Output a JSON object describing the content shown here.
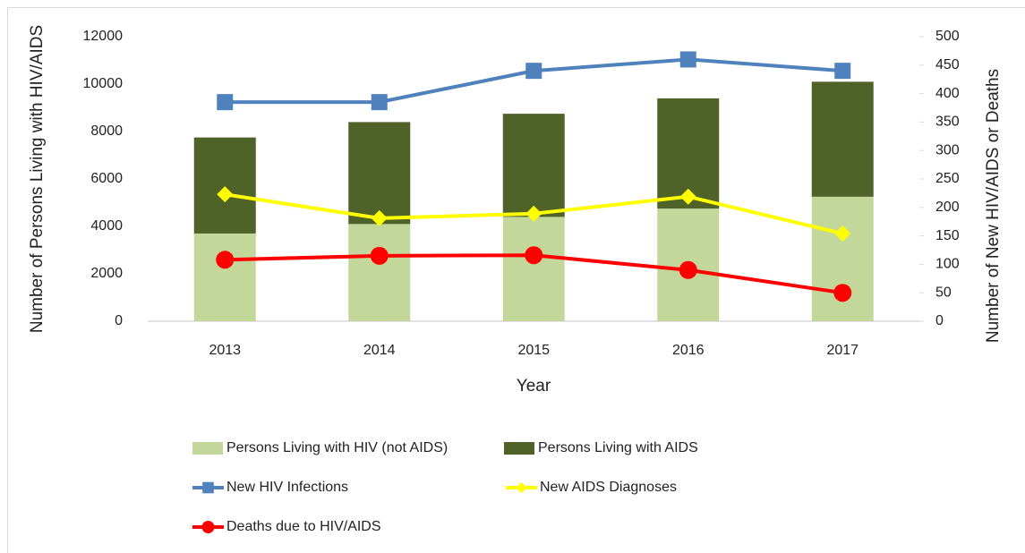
{
  "chart_data": {
    "type": "combo",
    "xlabel": "Year",
    "ylabel": "Number of Persons Living with HIV/AIDS",
    "y2label": "Number of New HIV/AIDS or Deaths",
    "categories": [
      "2013",
      "2014",
      "2015",
      "2016",
      "2017"
    ],
    "ylim": [
      0,
      12000
    ],
    "yticks": [
      0,
      2000,
      4000,
      6000,
      8000,
      10000,
      12000
    ],
    "y2lim": [
      0,
      500
    ],
    "y2ticks": [
      0,
      50,
      100,
      150,
      200,
      250,
      300,
      350,
      400,
      450,
      500
    ],
    "grid": false,
    "legend": "bottom",
    "series": [
      {
        "name": "Persons Living with HIV (not AIDS)",
        "type": "bar",
        "stack": true,
        "color": "#c4d79b",
        "values": [
          3700,
          4100,
          4400,
          4750,
          5250
        ]
      },
      {
        "name": "Persons Living with AIDS",
        "type": "bar",
        "stack": true,
        "color": "#4f6228",
        "values": [
          4050,
          4300,
          4350,
          4650,
          4850
        ]
      },
      {
        "name": "New HIV Infections",
        "type": "line",
        "axis": "y2",
        "marker": "square",
        "color": "#4f81bd",
        "values": [
          385,
          385,
          440,
          460,
          440
        ]
      },
      {
        "name": "New AIDS Diagnoses",
        "type": "line",
        "axis": "y2",
        "marker": "diamond",
        "color": "#ffff00",
        "values": [
          223,
          181,
          189,
          219,
          154
        ]
      },
      {
        "name": "Deaths due to HIV/AIDS",
        "type": "line",
        "axis": "y2",
        "marker": "circle",
        "color": "#ff0000",
        "values": [
          108,
          115,
          116,
          90,
          50
        ]
      }
    ]
  }
}
